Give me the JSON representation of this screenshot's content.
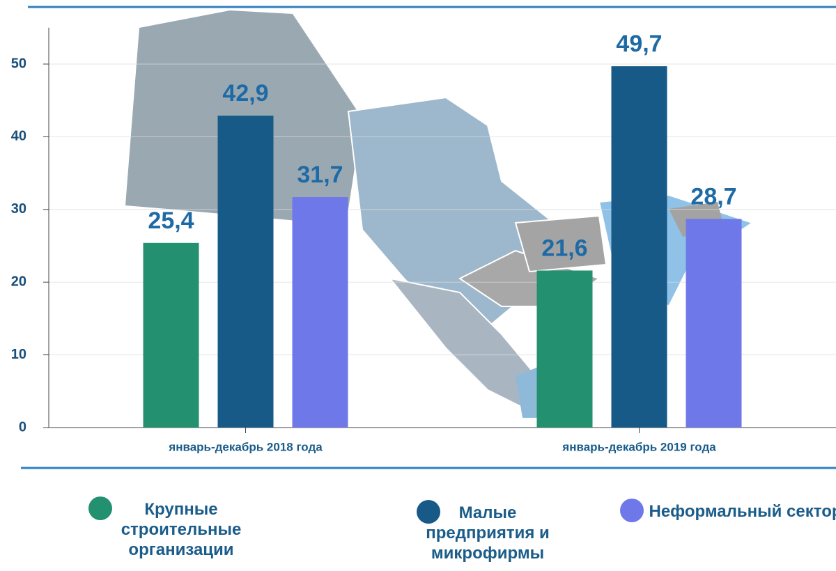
{
  "chart_data": {
    "type": "bar",
    "categories": [
      "январь-декабрь 2018 года",
      "январь-декабрь 2019 года"
    ],
    "series": [
      {
        "name": "Крупные строительные организации",
        "color": "#23906f",
        "values": [
          25.4,
          21.6
        ],
        "value_labels": [
          "25,4",
          "21,6"
        ]
      },
      {
        "name": "Малые предприятия и микрофирмы",
        "color": "#175a87",
        "values": [
          42.9,
          49.7
        ],
        "value_labels": [
          "42,9",
          "49,7"
        ]
      },
      {
        "name": "Неформальный сектор",
        "color": "#6f78e8",
        "values": [
          31.7,
          28.7
        ],
        "value_labels": [
          "31,7",
          "28,7"
        ]
      }
    ],
    "ylim": [
      0,
      55
    ],
    "yticks": [
      0,
      10,
      20,
      30,
      40,
      50
    ],
    "grid": true
  }
}
